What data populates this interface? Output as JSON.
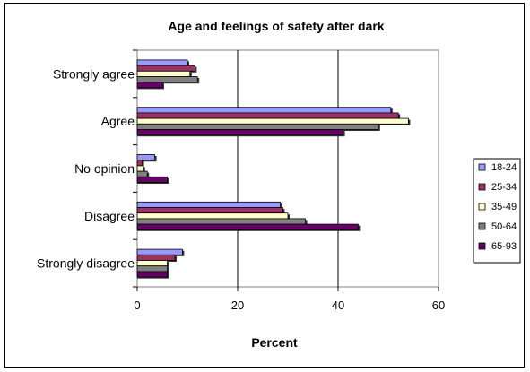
{
  "chart_data": {
    "type": "bar",
    "orientation": "horizontal",
    "title": "Age and feelings of safety after dark",
    "xlabel": "Percent",
    "ylabel": "",
    "xlim": [
      0,
      60
    ],
    "xticks": [
      0,
      20,
      40,
      60
    ],
    "grid": "vertical",
    "legend_position": "right",
    "categories": [
      "Strongly agree",
      "Agree",
      "No opinion",
      "Disagree",
      "Strongly disagree"
    ],
    "series": [
      {
        "name": "18-24",
        "color": "#9999FF",
        "values": [
          10,
          50.5,
          3.5,
          28.5,
          9
        ]
      },
      {
        "name": "25-34",
        "color": "#993366",
        "values": [
          11.5,
          52,
          1,
          29,
          7.5
        ]
      },
      {
        "name": "35-49",
        "color": "#FFFFCC",
        "values": [
          10.5,
          54,
          1.2,
          30,
          6
        ]
      },
      {
        "name": "50-64",
        "color": "#808080",
        "values": [
          12,
          48,
          2,
          33.5,
          6
        ]
      },
      {
        "name": "65-93",
        "color": "#660066",
        "values": [
          5,
          41,
          6,
          44,
          6
        ]
      }
    ]
  }
}
